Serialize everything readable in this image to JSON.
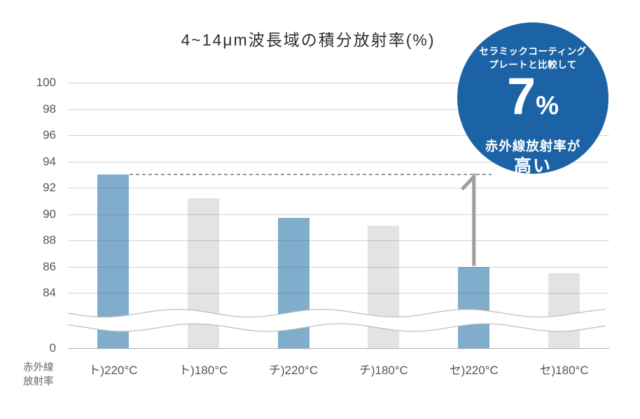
{
  "title": "4~14μm波長域の積分放射率(%)",
  "badge": {
    "line1": "セラミックコーティング",
    "line2": "プレートと比較して",
    "big_value": "7",
    "big_unit": "%",
    "line3": "赤外線放射率が",
    "line4": "高い",
    "bg_color": "#1c63a5",
    "text_color": "#ffffff"
  },
  "chart_data": {
    "type": "bar",
    "title": "4~14μm波長域の積分放射率(%)",
    "categories": [
      "ト)220°C",
      "ト)180°C",
      "チ)220°C",
      "チ)180°C",
      "セ)220°C",
      "セ)180°C"
    ],
    "values": [
      93.0,
      91.2,
      89.7,
      89.1,
      86.0,
      85.5
    ],
    "bar_colors": [
      "#7fadcb",
      "#e3e3e3",
      "#7fadcb",
      "#e3e3e3",
      "#7fadcb",
      "#e3e3e3"
    ],
    "highlight_color": "#7fadcb",
    "muted_color": "#e3e3e3",
    "yticks": [
      100,
      98,
      96,
      94,
      92,
      90,
      88,
      86,
      84
    ],
    "zero_label": "0",
    "ylim": [
      84,
      100
    ],
    "axis_break": true,
    "grid": true,
    "ylabel": "赤外線放射率",
    "ylabel_lines": [
      "赤外線",
      "放射率"
    ],
    "reference_line": {
      "value": 93.0,
      "style": "dashed",
      "color": "#999999"
    },
    "annotation_arrow": {
      "category_index": 4,
      "from_value": 86.0,
      "to_value": 93.0,
      "color": "#9e9e9e"
    }
  }
}
